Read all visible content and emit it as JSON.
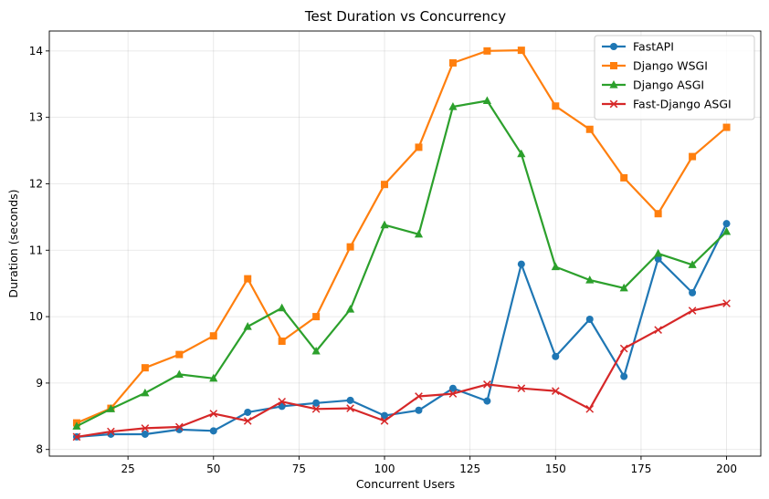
{
  "chart_data": {
    "type": "line",
    "title": "Test Duration vs Concurrency",
    "xlabel": "Concurrent Users",
    "ylabel": "Duration (seconds)",
    "xlim": [
      2,
      210
    ],
    "ylim": [
      7.9,
      14.3
    ],
    "xticks": [
      25,
      50,
      75,
      100,
      125,
      150,
      175,
      200
    ],
    "yticks": [
      8,
      9,
      10,
      11,
      12,
      13,
      14
    ],
    "grid": true,
    "legend_position": "top-right",
    "x": [
      10,
      20,
      30,
      40,
      50,
      60,
      70,
      80,
      90,
      100,
      110,
      120,
      130,
      140,
      150,
      160,
      170,
      180,
      190,
      200
    ],
    "series": [
      {
        "name": "FastAPI",
        "color": "#1f77b4",
        "marker": "circle",
        "values": [
          8.19,
          8.23,
          8.23,
          8.3,
          8.28,
          8.56,
          8.65,
          8.7,
          8.74,
          8.51,
          8.59,
          8.92,
          8.73,
          10.79,
          9.4,
          9.96,
          9.1,
          10.87,
          10.36,
          11.4
        ]
      },
      {
        "name": "Django WSGI",
        "color": "#ff7f0e",
        "marker": "square",
        "values": [
          8.4,
          8.62,
          9.23,
          9.43,
          9.71,
          10.57,
          9.63,
          10.0,
          11.05,
          11.99,
          12.55,
          13.82,
          14.0,
          14.01,
          13.17,
          12.82,
          12.09,
          11.55,
          12.41,
          12.85
        ]
      },
      {
        "name": "Django ASGI",
        "color": "#2ca02c",
        "marker": "triangle",
        "values": [
          8.35,
          8.61,
          8.85,
          9.13,
          9.07,
          9.85,
          10.13,
          9.48,
          10.11,
          11.38,
          11.24,
          13.16,
          13.25,
          12.45,
          10.75,
          10.55,
          10.43,
          10.95,
          10.78,
          11.28
        ]
      },
      {
        "name": "Fast-Django ASGI",
        "color": "#d62728",
        "marker": "x",
        "values": [
          8.19,
          8.27,
          8.32,
          8.34,
          8.54,
          8.43,
          8.72,
          8.61,
          8.62,
          8.43,
          8.8,
          8.84,
          8.98,
          8.92,
          8.88,
          8.61,
          9.52,
          9.8,
          10.09,
          10.2
        ]
      }
    ]
  }
}
